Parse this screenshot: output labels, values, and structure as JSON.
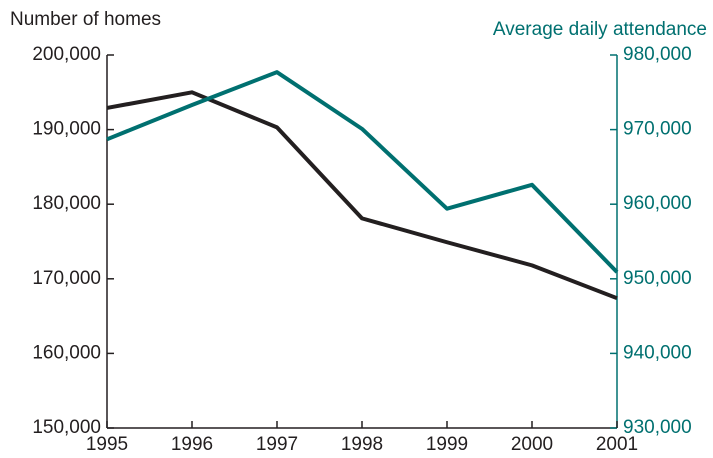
{
  "chart_data": {
    "type": "line",
    "y_label": "Number of homes",
    "y2_label": "Average daily attendance",
    "x": [
      1995,
      1996,
      1997,
      1998,
      1999,
      2000,
      2001
    ],
    "xlim": [
      1995,
      2001
    ],
    "xticks": [
      1995,
      1996,
      1997,
      1998,
      1999,
      2000,
      2001
    ],
    "ylim": [
      150000,
      200000
    ],
    "yticks": [
      {
        "value": 150000,
        "label": "150,000"
      },
      {
        "value": 160000,
        "label": "160,000"
      },
      {
        "value": 170000,
        "label": "170,000"
      },
      {
        "value": 180000,
        "label": "180,000"
      },
      {
        "value": 190000,
        "label": "190,000"
      },
      {
        "value": 200000,
        "label": "200,000"
      }
    ],
    "y2lim": [
      930000,
      980000
    ],
    "y2ticks": [
      {
        "value": 930000,
        "label": "930,000"
      },
      {
        "value": 940000,
        "label": "940,000"
      },
      {
        "value": 950000,
        "label": "950,000"
      },
      {
        "value": 960000,
        "label": "960,000"
      },
      {
        "value": 970000,
        "label": "970,000"
      },
      {
        "value": 980000,
        "label": "980,000"
      }
    ],
    "series": [
      {
        "color": "#231f20",
        "values": [
          192900,
          195000,
          190300,
          178100,
          174900,
          171800,
          167400
        ]
      },
      {
        "color": "#007070",
        "axis": "y2",
        "values": [
          968700,
          973300,
          977700,
          970100,
          959400,
          962600,
          950900
        ]
      }
    ]
  }
}
